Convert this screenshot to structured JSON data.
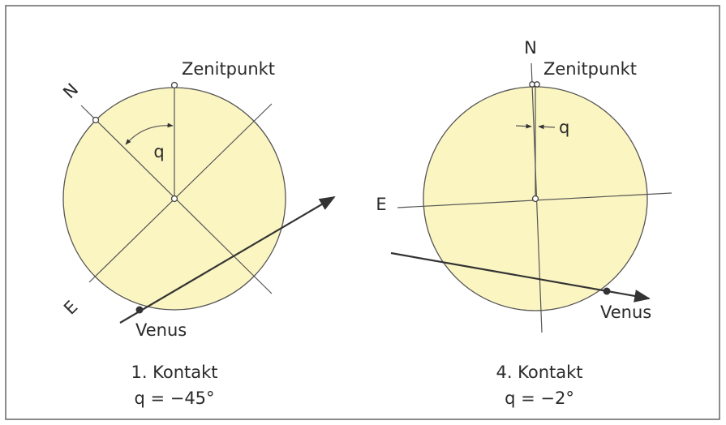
{
  "panels": [
    {
      "north": "N",
      "zenith": "Zenitpunkt",
      "angle": "q",
      "east": "E",
      "planet": "Venus",
      "caption": "1. Kontakt",
      "formula": "q = −45°"
    },
    {
      "north": "N",
      "zenith": "Zenitpunkt",
      "angle": "q",
      "east": "E",
      "planet": "Venus",
      "caption": "4. Kontakt",
      "formula": "q = −2°"
    }
  ]
}
